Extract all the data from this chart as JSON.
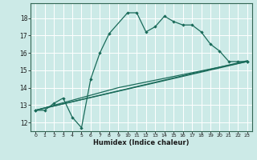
{
  "xlabel": "Humidex (Indice chaleur)",
  "ylabel": "",
  "xlim": [
    -0.5,
    23.5
  ],
  "ylim": [
    11.5,
    18.85
  ],
  "yticks": [
    12,
    13,
    14,
    15,
    16,
    17,
    18
  ],
  "xticks": [
    0,
    1,
    2,
    3,
    4,
    5,
    6,
    7,
    8,
    9,
    10,
    11,
    12,
    13,
    14,
    15,
    16,
    17,
    18,
    19,
    20,
    21,
    22,
    23
  ],
  "bg_color": "#cceae7",
  "grid_color": "#ffffff",
  "line_color": "#1a6b5a",
  "curve_x": [
    0,
    1,
    2,
    3,
    4,
    5,
    6,
    7,
    8,
    10,
    11,
    12,
    13,
    14,
    15,
    16,
    17,
    18,
    19,
    20,
    21,
    22,
    23
  ],
  "curve_y": [
    12.7,
    12.7,
    13.1,
    13.4,
    12.3,
    11.7,
    14.5,
    16.0,
    17.1,
    18.3,
    18.3,
    17.2,
    17.5,
    18.1,
    17.8,
    17.6,
    17.6,
    17.2,
    16.5,
    16.1,
    15.5,
    15.5,
    15.5
  ],
  "line1_x": [
    0,
    23
  ],
  "line1_y": [
    12.7,
    15.5
  ],
  "line2_x": [
    0,
    9,
    23
  ],
  "line2_y": [
    12.7,
    14.0,
    15.5
  ],
  "line3_x": [
    0,
    23
  ],
  "line3_y": [
    12.7,
    15.55
  ]
}
